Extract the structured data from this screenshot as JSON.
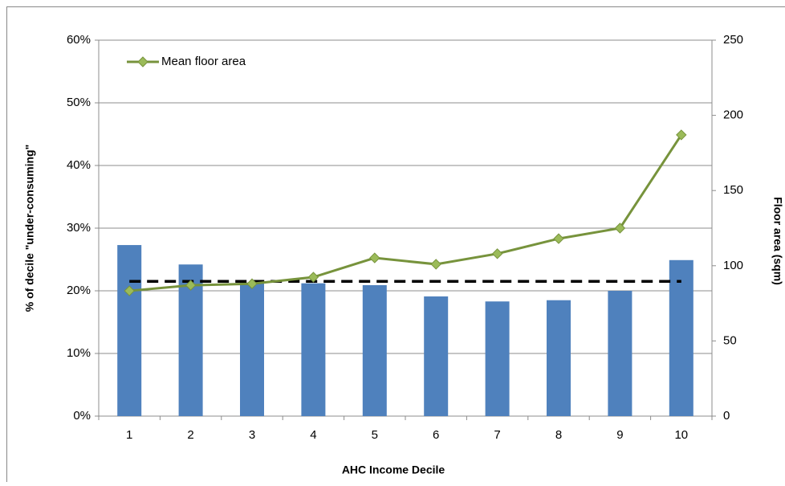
{
  "chart_data": {
    "type": "combo",
    "x_label": "AHC Income Decile",
    "y_label": "% of decile \"under-consuming\"",
    "y2_label": "Floor area (sqm)",
    "categories": [
      "1",
      "2",
      "3",
      "4",
      "5",
      "6",
      "7",
      "8",
      "9",
      "10"
    ],
    "series": [
      {
        "type": "bar",
        "color": "#4f81bd",
        "values": [
          27.3,
          24.2,
          21.3,
          21.2,
          20.9,
          19.1,
          18.3,
          18.5,
          20.0,
          24.9
        ]
      },
      {
        "type": "line",
        "name": "Mean floor area",
        "color": "#77933c",
        "axis": "y2",
        "values": [
          83.3,
          87,
          88,
          92.4,
          105.2,
          101,
          108,
          118,
          125,
          187
        ]
      }
    ],
    "reference_line": {
      "value": 21.5,
      "color": "#000000"
    },
    "ylim": [
      0,
      60
    ],
    "yticks": [
      {
        "value": 0,
        "label": "0%"
      },
      {
        "value": 10,
        "label": "10%"
      },
      {
        "value": 20,
        "label": "20%"
      },
      {
        "value": 30,
        "label": "30%"
      },
      {
        "value": 40,
        "label": "40%"
      },
      {
        "value": 50,
        "label": "50%"
      },
      {
        "value": 60,
        "label": "60%"
      }
    ],
    "y2lim": [
      0,
      250
    ],
    "y2ticks": [
      0,
      50,
      100,
      150,
      200,
      250
    ],
    "grid": true,
    "legend": "top-left"
  }
}
